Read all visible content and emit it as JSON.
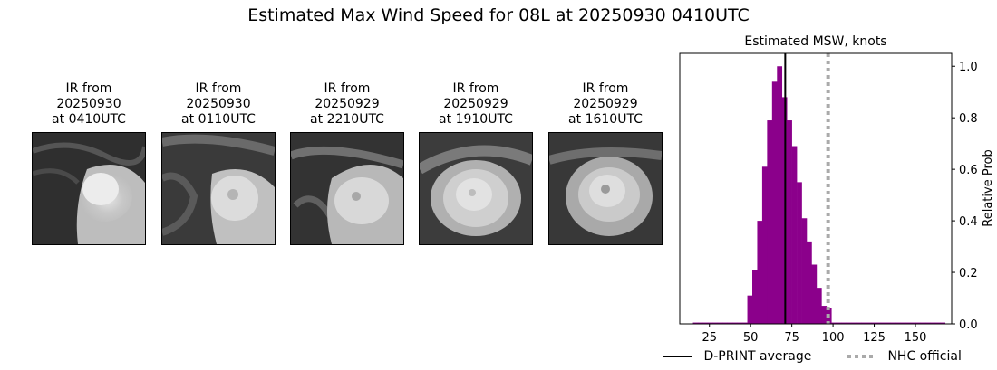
{
  "figure": {
    "title": "Estimated Max Wind Speed for 08L at 20250930 0410UTC"
  },
  "ir_panels": [
    {
      "title_lines": [
        "IR from",
        "20250930",
        "at 0410UTC"
      ],
      "image": "ir-satellite-0410-icon"
    },
    {
      "title_lines": [
        "IR from",
        "20250930",
        "at 0110UTC"
      ],
      "image": "ir-satellite-0110-icon"
    },
    {
      "title_lines": [
        "IR from",
        "20250929",
        "at 2210UTC"
      ],
      "image": "ir-satellite-2210-icon"
    },
    {
      "title_lines": [
        "IR from",
        "20250929",
        "at 1910UTC"
      ],
      "image": "ir-satellite-1910-icon"
    },
    {
      "title_lines": [
        "IR from",
        "20250929",
        "at 1610UTC"
      ],
      "image": "ir-satellite-1610-icon"
    }
  ],
  "chart_data": {
    "type": "bar",
    "title": "Estimated MSW, knots",
    "xlabel": "",
    "ylabel": "Relative Prob",
    "xlim": [
      7,
      172
    ],
    "ylim": [
      0,
      1.05
    ],
    "xticks": [
      25,
      50,
      75,
      100,
      125,
      150
    ],
    "yticks": [
      0.0,
      0.2,
      0.4,
      0.6,
      0.8,
      1.0
    ],
    "ytick_labels": [
      "0.0",
      "0.2",
      "0.4",
      "0.6",
      "0.8",
      "1.0"
    ],
    "bar_color": "#8b008b",
    "bin_width": 3,
    "bins": [
      {
        "x0": 15,
        "value": 0.005
      },
      {
        "x0": 18,
        "value": 0.005
      },
      {
        "x0": 21,
        "value": 0.005
      },
      {
        "x0": 24,
        "value": 0.005
      },
      {
        "x0": 27,
        "value": 0.005
      },
      {
        "x0": 30,
        "value": 0.005
      },
      {
        "x0": 33,
        "value": 0.005
      },
      {
        "x0": 36,
        "value": 0.005
      },
      {
        "x0": 39,
        "value": 0.005
      },
      {
        "x0": 42,
        "value": 0.005
      },
      {
        "x0": 45,
        "value": 0.005
      },
      {
        "x0": 48,
        "value": 0.11
      },
      {
        "x0": 51,
        "value": 0.21
      },
      {
        "x0": 54,
        "value": 0.4
      },
      {
        "x0": 57,
        "value": 0.61
      },
      {
        "x0": 60,
        "value": 0.79
      },
      {
        "x0": 63,
        "value": 0.94
      },
      {
        "x0": 66,
        "value": 1.0
      },
      {
        "x0": 69,
        "value": 0.88
      },
      {
        "x0": 72,
        "value": 0.79
      },
      {
        "x0": 75,
        "value": 0.69
      },
      {
        "x0": 78,
        "value": 0.55
      },
      {
        "x0": 81,
        "value": 0.41
      },
      {
        "x0": 84,
        "value": 0.32
      },
      {
        "x0": 87,
        "value": 0.23
      },
      {
        "x0": 90,
        "value": 0.14
      },
      {
        "x0": 93,
        "value": 0.07
      },
      {
        "x0": 96,
        "value": 0.06
      },
      {
        "x0": 99,
        "value": 0.005
      },
      {
        "x0": 102,
        "value": 0.005
      },
      {
        "x0": 105,
        "value": 0.005
      },
      {
        "x0": 108,
        "value": 0.005
      },
      {
        "x0": 111,
        "value": 0.005
      },
      {
        "x0": 114,
        "value": 0.005
      },
      {
        "x0": 117,
        "value": 0.005
      },
      {
        "x0": 120,
        "value": 0.005
      },
      {
        "x0": 123,
        "value": 0.005
      },
      {
        "x0": 126,
        "value": 0.005
      },
      {
        "x0": 129,
        "value": 0.005
      },
      {
        "x0": 132,
        "value": 0.005
      },
      {
        "x0": 135,
        "value": 0.005
      },
      {
        "x0": 138,
        "value": 0.005
      },
      {
        "x0": 141,
        "value": 0.005
      },
      {
        "x0": 144,
        "value": 0.005
      },
      {
        "x0": 147,
        "value": 0.005
      },
      {
        "x0": 150,
        "value": 0.005
      },
      {
        "x0": 153,
        "value": 0.005
      },
      {
        "x0": 156,
        "value": 0.005
      },
      {
        "x0": 159,
        "value": 0.005
      },
      {
        "x0": 162,
        "value": 0.005
      },
      {
        "x0": 165,
        "value": 0.005
      }
    ],
    "lines": [
      {
        "name": "D-PRINT average",
        "x": 71,
        "color": "#000000",
        "style": "solid"
      },
      {
        "name": "NHC official",
        "x": 97,
        "color": "#aaaaaa",
        "style": "dotted"
      }
    ],
    "legend_location": "bottom"
  }
}
